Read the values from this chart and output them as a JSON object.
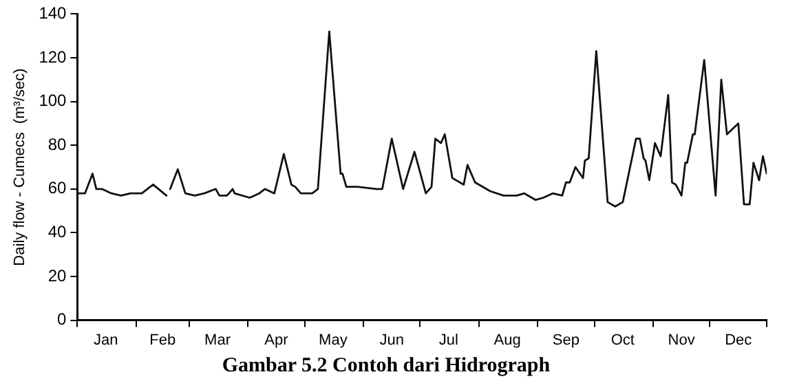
{
  "chart_data": {
    "type": "line",
    "title": "Gambar 5.2 Contoh dari Hidrograph",
    "ylabel": "Daily flow - Cumecs  (m³/sec)",
    "xlim": [
      "--01-01",
      "--12-31"
    ],
    "ylim": [
      0,
      140
    ],
    "yticks": [
      0,
      20,
      40,
      60,
      80,
      100,
      120,
      140
    ],
    "xticks": [
      {
        "value": "--01-01",
        "label": null
      },
      {
        "value": "--01-16",
        "label": "Jan"
      },
      {
        "value": "--02-01",
        "label": null
      },
      {
        "value": "--02-15",
        "label": "Feb"
      },
      {
        "value": "--03-01",
        "label": null
      },
      {
        "value": "--03-16",
        "label": "Mar"
      },
      {
        "value": "--04-01",
        "label": null
      },
      {
        "value": "--04-16",
        "label": "Apr"
      },
      {
        "value": "--05-01",
        "label": null
      },
      {
        "value": "--05-16",
        "label": "May"
      },
      {
        "value": "--06-01",
        "label": null
      },
      {
        "value": "--06-16",
        "label": "Jun"
      },
      {
        "value": "--07-01",
        "label": null
      },
      {
        "value": "--07-16",
        "label": "Jul"
      },
      {
        "value": "--08-01",
        "label": null
      },
      {
        "value": "--08-16",
        "label": "Aug"
      },
      {
        "value": "--09-01",
        "label": null
      },
      {
        "value": "--09-16",
        "label": "Sep"
      },
      {
        "value": "--10-01",
        "label": null
      },
      {
        "value": "--10-16",
        "label": "Oct"
      },
      {
        "value": "--11-01",
        "label": null
      },
      {
        "value": "--11-16",
        "label": "Nov"
      },
      {
        "value": "--12-01",
        "label": null
      },
      {
        "value": "--12-16",
        "label": "Dec"
      },
      {
        "value": "--12-31",
        "label": null
      }
    ],
    "grid": false,
    "legend": false,
    "marker": "none",
    "line_style": "solid",
    "series": [
      {
        "color": "#111111",
        "x": [
          "--01-01",
          "--01-05",
          "--01-09",
          "--01-11",
          "--01-14",
          "--01-19",
          "--01-24",
          "--01-29",
          "--02-04",
          "--02-10",
          "--02-17",
          "--02-18",
          "--02-19",
          "--02-23",
          "--02-27",
          "--03-04",
          "--03-09",
          "--03-15",
          "--03-17",
          "--03-21",
          "--03-24",
          "--03-25",
          "--04-02",
          "--04-07",
          "--04-10",
          "--04-15",
          "--04-20",
          "--04-24",
          "--04-26",
          "--04-29",
          "--05-02",
          "--05-05",
          "--05-08",
          "--05-14",
          "--05-20",
          "--05-21",
          "--05-23",
          "--05-29",
          "--06-08",
          "--06-11",
          "--06-16",
          "--06-22",
          "--06-28",
          "--07-04",
          "--07-07",
          "--07-09",
          "--07-12",
          "--07-14",
          "--07-18",
          "--07-24",
          "--07-26",
          "--07-30",
          "--08-07",
          "--08-14",
          "--08-21",
          "--08-25",
          "--08-31",
          "--09-04",
          "--09-09",
          "--09-14",
          "--09-16",
          "--09-18",
          "--09-21",
          "--09-25",
          "--09-26",
          "--09-28",
          "--10-02",
          "--10-08",
          "--10-12",
          "--10-16",
          "--10-23",
          "--10-25",
          "--10-27",
          "--10-28",
          "--10-30",
          "--11-02",
          "--11-05",
          "--11-09",
          "--11-11",
          "--11-13",
          "--11-16",
          "--11-18",
          "--11-19",
          "--11-22",
          "--11-23",
          "--11-28",
          "--12-04",
          "--12-07",
          "--12-10",
          "--12-16",
          "--12-19",
          "--12-22",
          "--12-24",
          "--12-27",
          "--12-29",
          "--12-31"
        ],
        "values": [
          58,
          58,
          67,
          60,
          60,
          58,
          57,
          58,
          58,
          62,
          57,
          null,
          60,
          69,
          58,
          57,
          58,
          60,
          57,
          57,
          60,
          58,
          56,
          58,
          60,
          58,
          76,
          62,
          61,
          58,
          58,
          58,
          60,
          132,
          67,
          67,
          61,
          61,
          60,
          60,
          83,
          60,
          77,
          58,
          61,
          83,
          81,
          85,
          65,
          62,
          71,
          63,
          59,
          57,
          57,
          58,
          55,
          56,
          58,
          57,
          63,
          63,
          70,
          65,
          73,
          74,
          123,
          54,
          52,
          54,
          83,
          83,
          74,
          73,
          64,
          81,
          75,
          103,
          63,
          62,
          57,
          72,
          72,
          85,
          85,
          119,
          57,
          110,
          85,
          90,
          53,
          53,
          72,
          64,
          75,
          67
        ]
      }
    ]
  }
}
